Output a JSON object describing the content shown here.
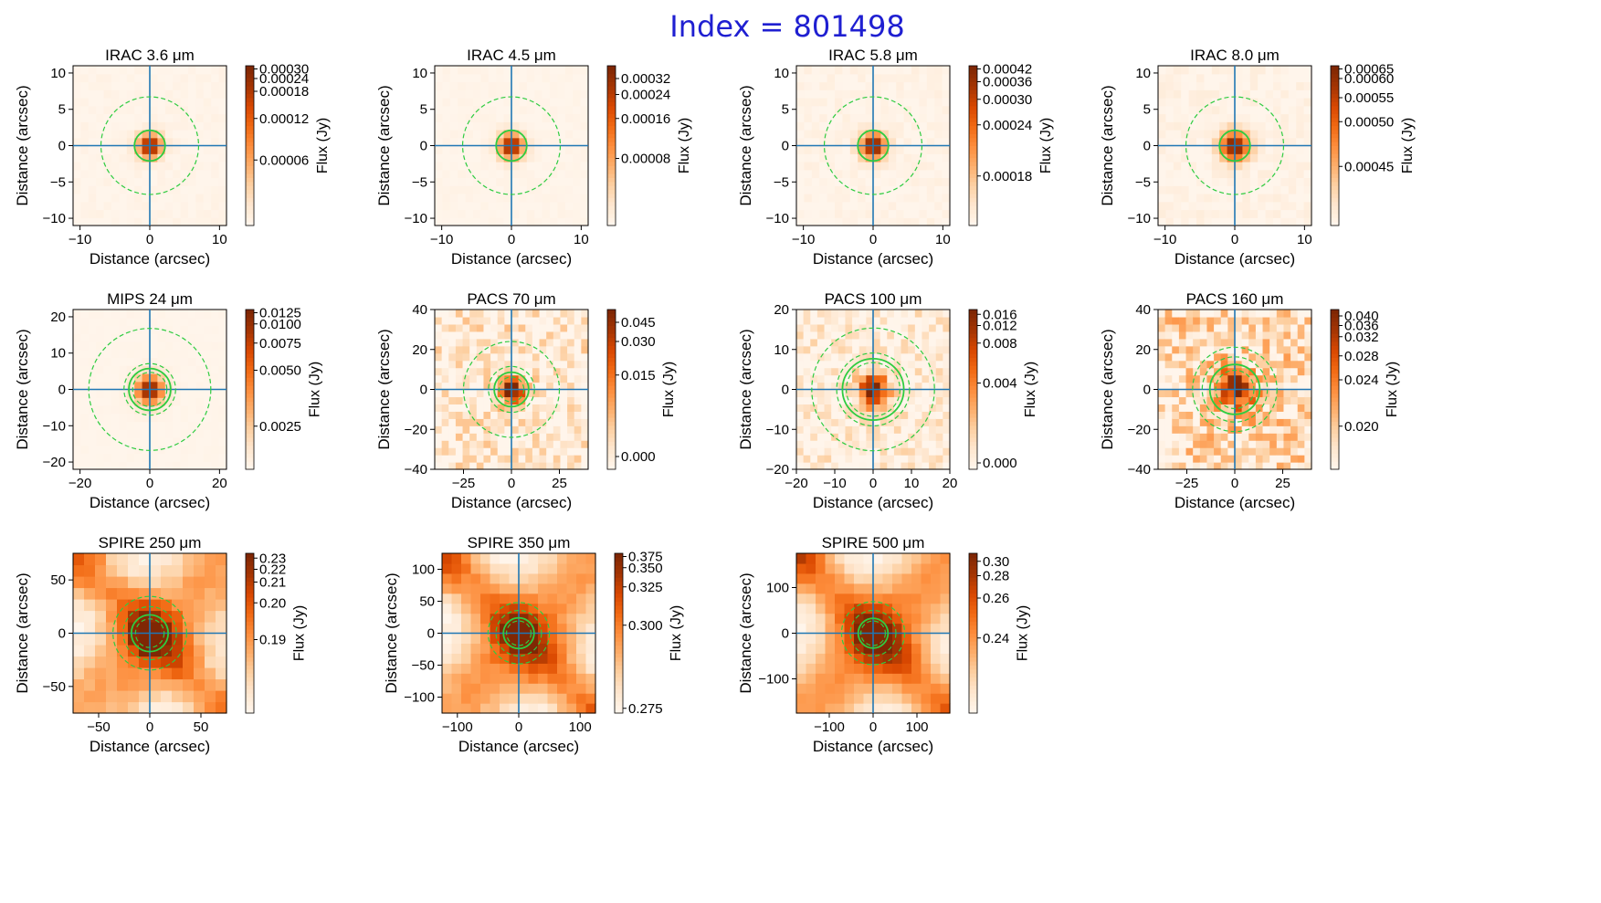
{
  "figure": {
    "title": "Index = 801498",
    "title_color": "#1f1fd1",
    "xlabel": "Distance (arcsec)",
    "ylabel": "Distance (arcsec)",
    "cbar_label": "Flux (Jy)",
    "colormap": "Oranges",
    "crosshair_color": "#1f77b4",
    "aperture_color": "#2ecc40"
  },
  "chart_data": [
    {
      "type": "heatmap",
      "title": "IRAC 3.6 μm",
      "band": "IRAC",
      "wavelength": "3.6",
      "xlim": [
        -11,
        11
      ],
      "ylim": [
        -11,
        11
      ],
      "xticks": [
        -10,
        0,
        10
      ],
      "yticks": [
        -10,
        -5,
        0,
        5,
        10
      ],
      "grid_n": 20,
      "seed": 11,
      "noise": 0.05,
      "core_amp": 1.0,
      "core_sigma": 1.2,
      "dust": 0,
      "apertures": {
        "inner": 2.2,
        "outer": 7.0,
        "dash_pair": false
      },
      "colorbar": {
        "ticks": [
          "0.00030",
          "0.00024",
          "0.00018",
          "0.00012",
          "0.00006"
        ],
        "fracs": [
          0.98,
          0.92,
          0.84,
          0.67,
          0.41
        ]
      }
    },
    {
      "type": "heatmap",
      "title": "IRAC 4.5 μm",
      "band": "IRAC",
      "wavelength": "4.5",
      "xlim": [
        -11,
        11
      ],
      "ylim": [
        -11,
        11
      ],
      "xticks": [
        -10,
        0,
        10
      ],
      "yticks": [
        -10,
        -5,
        0,
        5,
        10
      ],
      "grid_n": 20,
      "seed": 23,
      "noise": 0.04,
      "core_amp": 1.0,
      "core_sigma": 1.25,
      "dust": 0,
      "apertures": {
        "inner": 2.2,
        "outer": 7.0,
        "dash_pair": false
      },
      "colorbar": {
        "ticks": [
          "0.00032",
          "0.00024",
          "0.00016",
          "0.00008"
        ],
        "fracs": [
          0.92,
          0.82,
          0.67,
          0.42
        ]
      }
    },
    {
      "type": "heatmap",
      "title": "IRAC 5.8 μm",
      "band": "IRAC",
      "wavelength": "5.8",
      "xlim": [
        -11,
        11
      ],
      "ylim": [
        -11,
        11
      ],
      "xticks": [
        -10,
        0,
        10
      ],
      "yticks": [
        -10,
        -5,
        0,
        5,
        10
      ],
      "grid_n": 20,
      "seed": 37,
      "noise": 0.08,
      "core_amp": 1.0,
      "core_sigma": 1.3,
      "dust": 0,
      "apertures": {
        "inner": 2.2,
        "outer": 7.0,
        "dash_pair": false
      },
      "colorbar": {
        "ticks": [
          "0.00042",
          "0.00036",
          "0.00030",
          "0.00024",
          "0.00018"
        ],
        "fracs": [
          0.98,
          0.9,
          0.79,
          0.63,
          0.31
        ]
      }
    },
    {
      "type": "heatmap",
      "title": "IRAC 8.0 μm",
      "band": "IRAC",
      "wavelength": "8.0",
      "xlim": [
        -11,
        11
      ],
      "ylim": [
        -11,
        11
      ],
      "xticks": [
        -10,
        0,
        10
      ],
      "yticks": [
        -10,
        -5,
        0,
        5,
        10
      ],
      "grid_n": 20,
      "seed": 41,
      "noise": 0.1,
      "core_amp": 1.0,
      "core_sigma": 1.5,
      "dust": 0,
      "apertures": {
        "inner": 2.2,
        "outer": 7.0,
        "dash_pair": false
      },
      "colorbar": {
        "ticks": [
          "0.00065",
          "0.00060",
          "0.00055",
          "0.00050",
          "0.00045"
        ],
        "fracs": [
          0.98,
          0.92,
          0.8,
          0.65,
          0.37
        ]
      }
    },
    {
      "type": "heatmap",
      "title": "MIPS 24 μm",
      "band": "MIPS",
      "wavelength": "24",
      "xlim": [
        -22,
        22
      ],
      "ylim": [
        -22,
        22
      ],
      "xticks": [
        -20,
        0,
        20
      ],
      "yticks": [
        -20,
        -10,
        0,
        10,
        20
      ],
      "grid_n": 20,
      "seed": 53,
      "noise": 0.02,
      "core_amp": 1.0,
      "core_sigma": 2.8,
      "dust": 0,
      "apertures": {
        "inner": 6.0,
        "outer": 17.5,
        "dash_pair": true,
        "pair": [
          4.9,
          7.4
        ]
      },
      "colorbar": {
        "ticks": [
          "0.0125",
          "0.0100",
          "0.0075",
          "0.0050",
          "0.0025"
        ],
        "fracs": [
          0.98,
          0.91,
          0.79,
          0.62,
          0.27
        ]
      }
    },
    {
      "type": "heatmap",
      "title": "PACS 70 μm",
      "band": "PACS",
      "wavelength": "70",
      "xlim": [
        -40,
        40
      ],
      "ylim": [
        -40,
        40
      ],
      "xticks": [
        -25,
        0,
        25
      ],
      "yticks": [
        -40,
        -20,
        0,
        20,
        40
      ],
      "grid_n": 22,
      "seed": 67,
      "noise": 0.45,
      "core_amp": 1.0,
      "core_sigma": 4.5,
      "dust": 0,
      "apertures": {
        "inner": 9.0,
        "outer": 25.0,
        "dash_pair": true,
        "pair": [
          6.5,
          12.0
        ]
      },
      "colorbar": {
        "ticks": [
          "0.045",
          "0.030",
          "0.015",
          "0.000"
        ],
        "fracs": [
          0.92,
          0.8,
          0.59,
          0.08
        ]
      }
    },
    {
      "type": "heatmap",
      "title": "PACS 100 μm",
      "band": "PACS",
      "wavelength": "100",
      "xlim": [
        -20,
        20
      ],
      "ylim": [
        -20,
        20
      ],
      "xticks": [
        -20,
        -10,
        0,
        10,
        20
      ],
      "yticks": [
        -20,
        -10,
        0,
        10,
        20
      ],
      "grid_n": 22,
      "seed": 79,
      "noise": 0.35,
      "core_amp": 1.0,
      "core_sigma": 2.8,
      "dust": 0,
      "apertures": {
        "inner": 8.0,
        "outer": 16.0,
        "dash_pair": true,
        "pair": [
          7.0,
          9.5
        ]
      },
      "colorbar": {
        "ticks": [
          "0.016",
          "0.012",
          "0.008",
          "0.004",
          "0.000"
        ],
        "fracs": [
          0.97,
          0.9,
          0.79,
          0.54,
          0.04
        ]
      }
    },
    {
      "type": "heatmap",
      "title": "PACS 160 μm",
      "band": "PACS",
      "wavelength": "160",
      "xlim": [
        -40,
        40
      ],
      "ylim": [
        -40,
        40
      ],
      "xticks": [
        -25,
        0,
        25
      ],
      "yticks": [
        -40,
        -20,
        0,
        20,
        40
      ],
      "grid_n": 22,
      "seed": 97,
      "noise": 0.55,
      "core_amp": 0.75,
      "core_sigma": 6.0,
      "dust": 0.15,
      "apertures": {
        "inner": 13.0,
        "outer": 22.0,
        "dash_pair": true,
        "pair": [
          10.0,
          17.0
        ]
      },
      "colorbar": {
        "ticks": [
          "0.040",
          "0.036",
          "0.032",
          "0.028",
          "0.024",
          "0.020"
        ],
        "fracs": [
          0.96,
          0.9,
          0.83,
          0.71,
          0.56,
          0.27
        ]
      }
    },
    {
      "type": "heatmap",
      "title": "SPIRE 250 μm",
      "band": "SPIRE",
      "wavelength": "250",
      "xlim": [
        -75,
        75
      ],
      "ylim": [
        -75,
        75
      ],
      "xticks": [
        -50,
        0,
        50
      ],
      "yticks": [
        -50,
        0,
        50
      ],
      "grid_n": 14,
      "seed": 101,
      "noise": 0.12,
      "core_amp": 0.35,
      "core_sigma": 14,
      "dust": 0.9,
      "apertures": {
        "inner": 18.0,
        "outer": 36.0,
        "dash_pair": true,
        "pair": [
          14.0,
          26.0
        ]
      },
      "colorbar": {
        "ticks": [
          "0.23",
          "0.22",
          "0.21",
          "0.20",
          "0.19"
        ],
        "fracs": [
          0.97,
          0.9,
          0.82,
          0.69,
          0.46
        ]
      }
    },
    {
      "type": "heatmap",
      "title": "SPIRE 350 μm",
      "band": "SPIRE",
      "wavelength": "350",
      "xlim": [
        -125,
        125
      ],
      "ylim": [
        -125,
        125
      ],
      "xticks": [
        -100,
        0,
        100
      ],
      "yticks": [
        -100,
        -50,
        0,
        50,
        100
      ],
      "grid_n": 16,
      "seed": 113,
      "noise": 0.1,
      "core_amp": 0.3,
      "core_sigma": 20,
      "dust": 0.95,
      "apertures": {
        "inner": 25.0,
        "outer": 50.0,
        "dash_pair": true,
        "pair": [
          20.0,
          37.0
        ]
      },
      "colorbar": {
        "ticks": [
          "0.375",
          "0.350",
          "0.325",
          "0.300",
          "0.275"
        ],
        "fracs": [
          0.98,
          0.91,
          0.79,
          0.55,
          0.03
        ]
      }
    },
    {
      "type": "heatmap",
      "title": "SPIRE 500 μm",
      "band": "SPIRE",
      "wavelength": "500",
      "xlim": [
        -175,
        175
      ],
      "ylim": [
        -175,
        175
      ],
      "xticks": [
        -100,
        0,
        100
      ],
      "yticks": [
        -100,
        0,
        100
      ],
      "grid_n": 16,
      "seed": 127,
      "noise": 0.08,
      "core_amp": 0.25,
      "core_sigma": 28,
      "dust": 1.0,
      "apertures": {
        "inner": 34.0,
        "outer": 72.0,
        "dash_pair": true,
        "pair": [
          28.0,
          52.0
        ]
      },
      "colorbar": {
        "ticks": [
          "0.30",
          "0.28",
          "0.26",
          "0.24"
        ],
        "fracs": [
          0.95,
          0.86,
          0.72,
          0.47
        ]
      }
    }
  ]
}
